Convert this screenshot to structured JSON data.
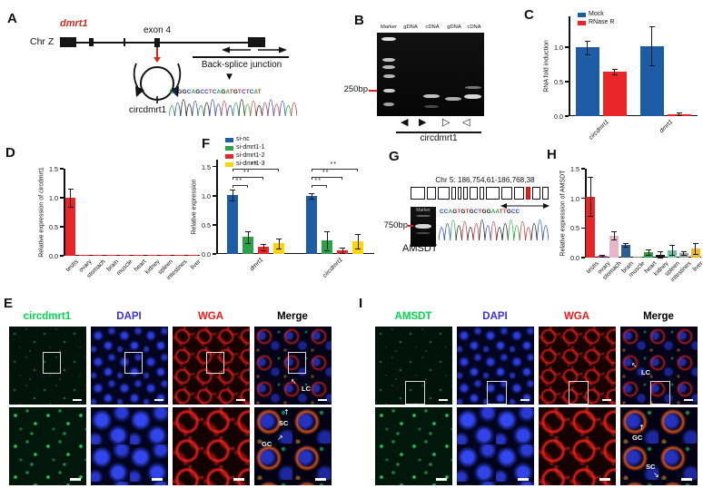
{
  "figure": {
    "panelA": {
      "label": "A",
      "gene": "dmrt1",
      "chromosome": "Chr Z",
      "exon": "exon 4",
      "junction": "Back-splice junction",
      "circ_name": "circdmrt1",
      "sequence": "ACGGCAGCCTCAGATGTCTCAT"
    },
    "panelB": {
      "label": "B",
      "lanes": [
        "Marker",
        "gDNA",
        "cDNA",
        "gDNA",
        "cDNA"
      ],
      "size_marker": "250bp",
      "arrows": [
        "◀",
        "▶",
        "▷",
        "◁"
      ],
      "gene": "circdmrt1"
    },
    "panelC": {
      "label": "C"
    },
    "panelD": {
      "label": "D"
    },
    "panelE": {
      "label": "E",
      "channels": [
        "circdmrt1",
        "DAPI",
        "WGA",
        "Merge"
      ],
      "channel_colors": [
        "#00d94a",
        "#3c2fe8",
        "#f51616",
        "#000000"
      ],
      "annotations": {
        "lc": "LC",
        "sc": "SC",
        "gc": "GC"
      }
    },
    "panelF": {
      "label": "F"
    },
    "panelG": {
      "label": "G",
      "locus": "Chr 5: 186,754,61-186,768,38",
      "gel_lane": "Marker",
      "size_marker": "750bp",
      "gene": "AMSDT",
      "sequence": "CCAGTGTGCTGGAATTGCC"
    },
    "panelH": {
      "label": "H"
    },
    "panelI": {
      "label": "I",
      "channels": [
        "AMSDT",
        "DAPI",
        "WGA",
        "Merge"
      ],
      "channel_colors": [
        "#00d94a",
        "#3c2fe8",
        "#f51616",
        "#000000"
      ],
      "annotations": {
        "lc": "LC",
        "sc": "SC",
        "gc": "GC"
      }
    }
  },
  "chart_data": [
    {
      "id": "C",
      "type": "bar",
      "title": "",
      "ylabel": "RNA fold induction",
      "categories": [
        "circdmrt1",
        "dmrt1"
      ],
      "italic_x": true,
      "series": [
        {
          "name": "Mock",
          "color": "#1e5ca5",
          "values": [
            1.0,
            1.02
          ],
          "errors": [
            0.1,
            0.28
          ]
        },
        {
          "name": "RNase R",
          "color": "#e8262a",
          "values": [
            0.65,
            0.03
          ],
          "errors": [
            0.04,
            0.02
          ]
        }
      ],
      "yticks": [
        0,
        0.5,
        1.0
      ],
      "ylim": [
        0,
        1.45
      ],
      "legend_position": "top-left",
      "grid": false
    },
    {
      "id": "D",
      "type": "bar",
      "title": "",
      "ylabel": "Relative expression of circdmrt1",
      "categories": [
        "testis",
        "ovary",
        "stomach",
        "brain",
        "muscle",
        "heart",
        "kidney",
        "spleen",
        "intestines",
        "liver"
      ],
      "italic_x": false,
      "values": [
        1.0,
        0.01,
        0.01,
        0.01,
        0.01,
        0.01,
        0.01,
        0.01,
        0.01,
        0.01
      ],
      "errors": [
        0.15,
        0,
        0,
        0,
        0,
        0,
        0,
        0,
        0,
        0
      ],
      "colors": [
        "#e8262a",
        "#e8262a",
        "#e8262a",
        "#e8262a",
        "#e8262a",
        "#e8262a",
        "#e8262a",
        "#e8262a",
        "#e8262a",
        "#e8262a"
      ],
      "yticks": [
        0,
        0.5,
        1.0,
        1.5
      ],
      "ylim": [
        0,
        1.5
      ],
      "grid": false
    },
    {
      "id": "F",
      "type": "bar",
      "title": "",
      "ylabel": "Relative expression",
      "categories": [
        "dmrt1",
        "circdmrt1"
      ],
      "italic_x": true,
      "series": [
        {
          "name": "si-nc",
          "color": "#1e5ca5",
          "values": [
            1.01,
            1.0
          ],
          "errors": [
            0.09,
            0.05
          ]
        },
        {
          "name": "si-dmrt1-1",
          "color": "#2da048",
          "values": [
            0.29,
            0.23
          ],
          "errors": [
            0.1,
            0.16
          ]
        },
        {
          "name": "si-dmrt1-2",
          "color": "#e8262a",
          "values": [
            0.12,
            0.06
          ],
          "errors": [
            0.05,
            0.05
          ]
        },
        {
          "name": "si-dmrt1-3",
          "color": "#ffd400",
          "values": [
            0.18,
            0.22
          ],
          "errors": [
            0.08,
            0.12
          ]
        }
      ],
      "yticks": [
        0,
        0.5,
        1.0,
        1.5
      ],
      "ylim": [
        0,
        1.62
      ],
      "legend_position": "top-left",
      "significance": [
        {
          "group": 0,
          "from": 0,
          "to": 1,
          "label": "**",
          "h": 1.18
        },
        {
          "group": 0,
          "from": 0,
          "to": 2,
          "label": "**",
          "h": 1.32
        },
        {
          "group": 0,
          "from": 0,
          "to": 3,
          "label": "**",
          "h": 1.46
        },
        {
          "group": 1,
          "from": 0,
          "to": 1,
          "label": "**",
          "h": 1.18
        },
        {
          "group": 1,
          "from": 0,
          "to": 2,
          "label": "**",
          "h": 1.32
        },
        {
          "group": 1,
          "from": 0,
          "to": 3,
          "label": "**",
          "h": 1.46
        }
      ],
      "grid": false
    },
    {
      "id": "H",
      "type": "bar",
      "title": "",
      "ylabel": "Relative expression of AMSDT",
      "categories": [
        "testis",
        "ovary",
        "stomach",
        "brain",
        "muscle",
        "heart",
        "kidney",
        "spleen",
        "intestines",
        "liver"
      ],
      "italic_x": false,
      "values": [
        1.03,
        0.03,
        0.37,
        0.22,
        0.01,
        0.09,
        0.04,
        0.13,
        0.07,
        0.15
      ],
      "errors": [
        0.33,
        0.01,
        0.07,
        0.03,
        0,
        0.05,
        0.06,
        0.08,
        0.03,
        0.09
      ],
      "colors": [
        "#e8262a",
        "#bb3a9e",
        "#e6b6c8",
        "#2c5f8f",
        "#8a8a8a",
        "#2da048",
        "#141414",
        "#69c0a5",
        "#9e9e9e",
        "#f2b824"
      ],
      "yticks": [
        0,
        0.5,
        1.0,
        1.5
      ],
      "ylim": [
        0,
        1.5
      ],
      "grid": false
    }
  ]
}
